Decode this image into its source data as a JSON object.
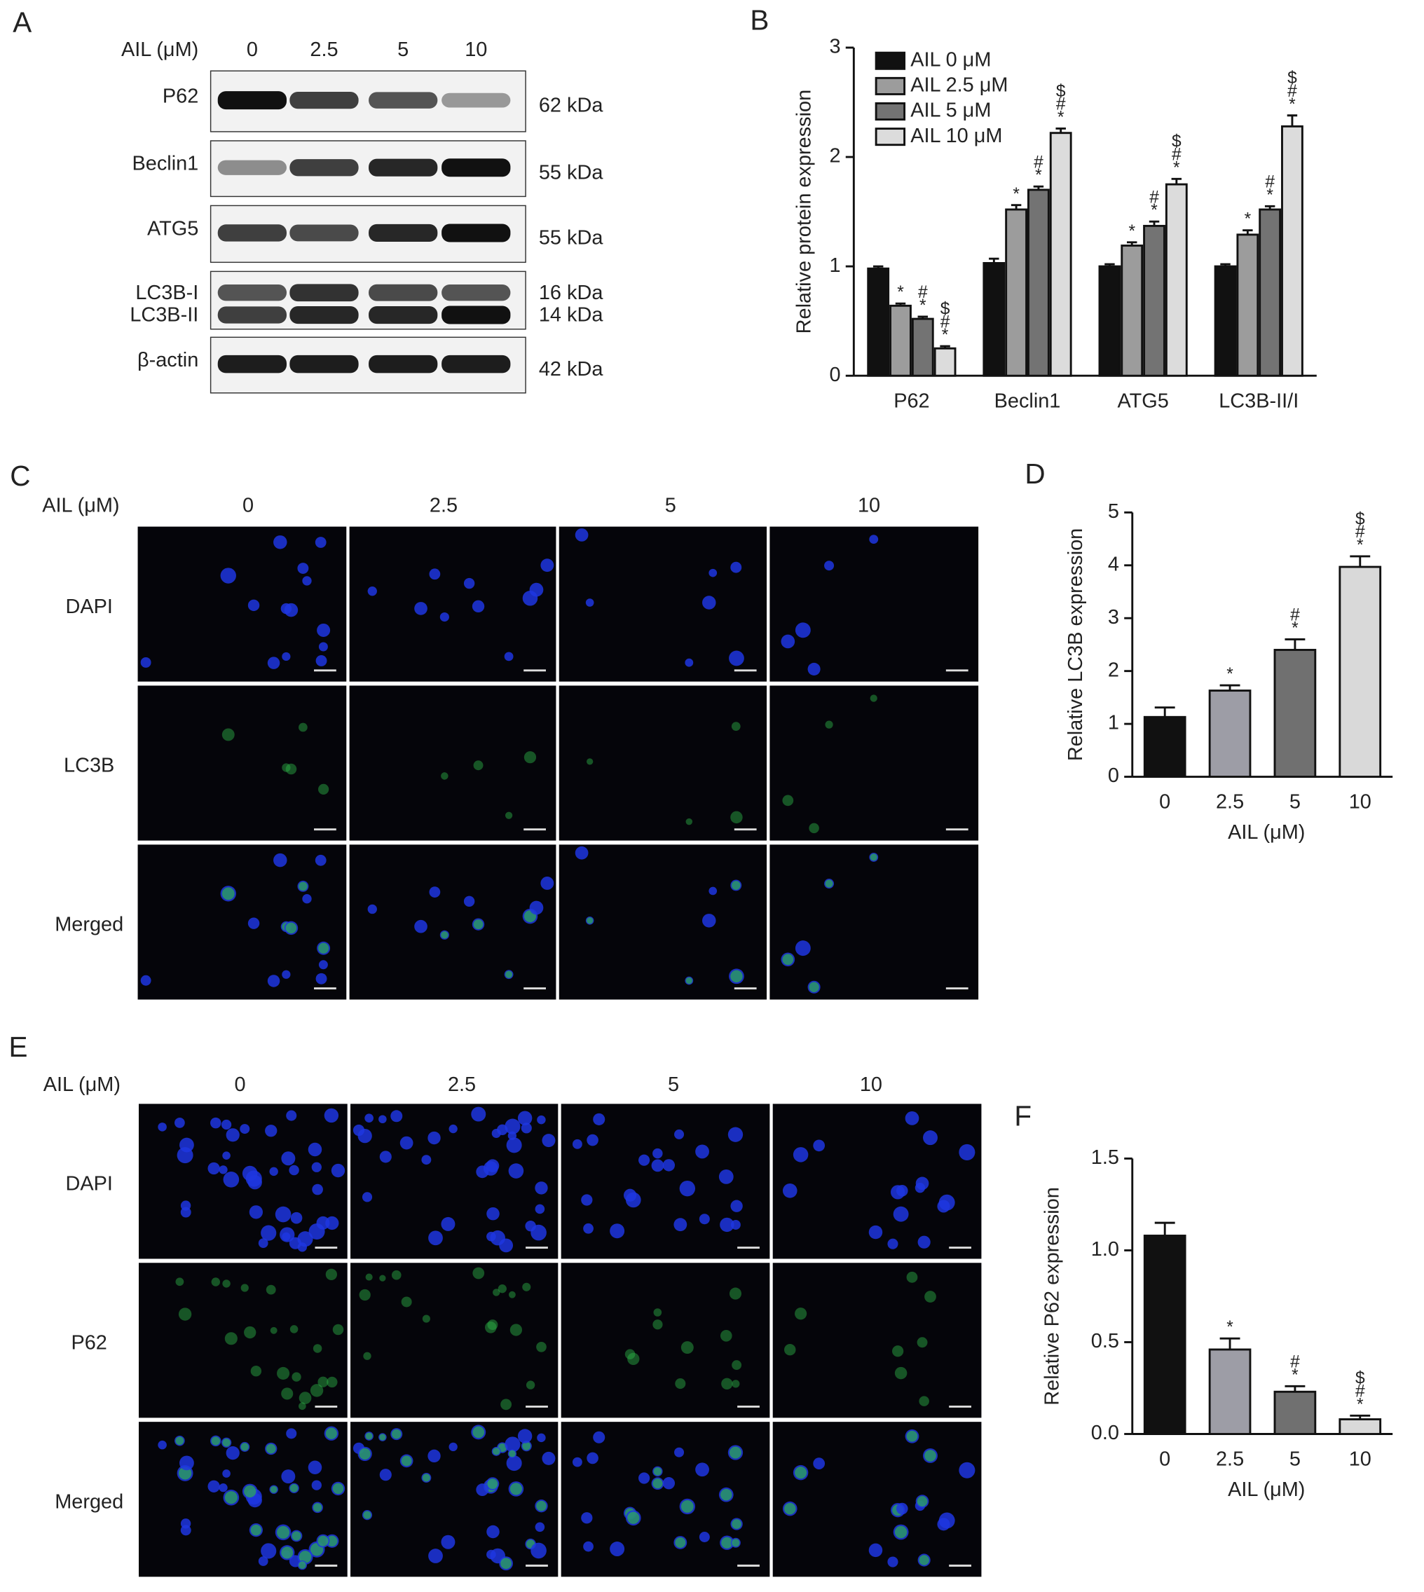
{
  "panel_labels": [
    "A",
    "B",
    "C",
    "D",
    "E",
    "F"
  ],
  "blot": {
    "axis_label": "AIL (μM)",
    "doses": [
      "0",
      "2.5",
      "5",
      "10"
    ],
    "rows": [
      {
        "labels": [
          "P62"
        ],
        "sizes": [
          "62 kDa"
        ]
      },
      {
        "labels": [
          "Beclin1"
        ],
        "sizes": [
          "55 kDa"
        ]
      },
      {
        "labels": [
          "ATG5"
        ],
        "sizes": [
          "55 kDa"
        ]
      },
      {
        "labels": [
          "LC3B-I",
          "LC3B-II"
        ],
        "sizes": [
          "16 kDa",
          "14 kDa"
        ]
      },
      {
        "labels": [
          "β-actin"
        ],
        "sizes": [
          "42 kDa"
        ]
      }
    ]
  },
  "lc3b_staining": {
    "axis_label": "AIL (μM)",
    "doses": [
      "0",
      "2.5",
      "5",
      "10"
    ],
    "rows": [
      "DAPI",
      "LC3B",
      "Merged"
    ]
  },
  "p62_staining": {
    "axis_label": "AIL (μM)",
    "doses": [
      "0",
      "2.5",
      "5",
      "10"
    ],
    "rows": [
      "DAPI",
      "P62",
      "Merged"
    ]
  },
  "chart_data": [
    {
      "type": "bar",
      "ylabel": "Relative protein expression",
      "categories": [
        "P62",
        "Beclin1",
        "ATG5",
        "LC3B-II/I"
      ],
      "series": [
        {
          "name": "AIL 0 μM",
          "color": "#111111",
          "values": [
            0.98,
            1.03,
            1.0,
            1.0
          ],
          "errors": [
            0.02,
            0.04,
            0.02,
            0.02
          ],
          "significance": [
            [],
            [],
            [],
            []
          ]
        },
        {
          "name": "AIL 2.5 μM",
          "color": "#9c9c9c",
          "values": [
            0.64,
            1.52,
            1.19,
            1.29
          ],
          "errors": [
            0.02,
            0.04,
            0.03,
            0.04
          ],
          "significance": [
            [
              "*"
            ],
            [
              "*"
            ],
            [
              "*"
            ],
            [
              "*"
            ]
          ]
        },
        {
          "name": "AIL 5 μM",
          "color": "#737373",
          "values": [
            0.52,
            1.7,
            1.37,
            1.52
          ],
          "errors": [
            0.02,
            0.03,
            0.04,
            0.03
          ],
          "significance": [
            [
              "*",
              "#"
            ],
            [
              "*",
              "#"
            ],
            [
              "*",
              "#"
            ],
            [
              "*",
              "#"
            ]
          ]
        },
        {
          "name": "AIL 10 μM",
          "color": "#dcdcdc",
          "values": [
            0.25,
            2.22,
            1.75,
            2.28
          ],
          "errors": [
            0.02,
            0.04,
            0.05,
            0.1
          ],
          "significance": [
            [
              "*",
              "#",
              "$"
            ],
            [
              "*",
              "#",
              "$"
            ],
            [
              "*",
              "#",
              "$"
            ],
            [
              "*",
              "#",
              "$"
            ]
          ]
        }
      ],
      "ylim": [
        0,
        3
      ],
      "yticks": [
        0,
        1,
        2,
        3
      ],
      "legend": "top-left"
    },
    {
      "type": "bar",
      "ylabel": "Relative LC3B expression",
      "xlabel": "AIL (μM)",
      "categories": [
        "0",
        "2.5",
        "5",
        "10"
      ],
      "values": [
        1.13,
        1.63,
        2.4,
        3.97
      ],
      "errors": [
        0.18,
        0.1,
        0.2,
        0.2
      ],
      "colors": [
        "#111111",
        "#9d9da6",
        "#707070",
        "#d9d9d9"
      ],
      "significance": [
        [],
        [
          "*"
        ],
        [
          "*",
          "#"
        ],
        [
          "*",
          "#",
          "$"
        ]
      ],
      "ylim": [
        0,
        5
      ],
      "yticks": [
        0,
        1,
        2,
        3,
        4,
        5
      ]
    },
    {
      "type": "bar",
      "ylabel": "Relative P62 expression",
      "xlabel": "AIL (μM)",
      "categories": [
        "0",
        "2.5",
        "5",
        "10"
      ],
      "values": [
        1.08,
        0.46,
        0.23,
        0.08
      ],
      "errors": [
        0.07,
        0.06,
        0.03,
        0.02
      ],
      "colors": [
        "#111111",
        "#9d9da6",
        "#707070",
        "#d9d9d9"
      ],
      "significance": [
        [],
        [
          "*"
        ],
        [
          "*",
          "#"
        ],
        [
          "*",
          "#",
          "$"
        ]
      ],
      "ylim": [
        0,
        1.5
      ],
      "yticks": [
        {
          "value": 0,
          "label": "0.0"
        },
        0.5,
        {
          "value": 1,
          "label": "1.0"
        },
        1.5
      ]
    }
  ]
}
